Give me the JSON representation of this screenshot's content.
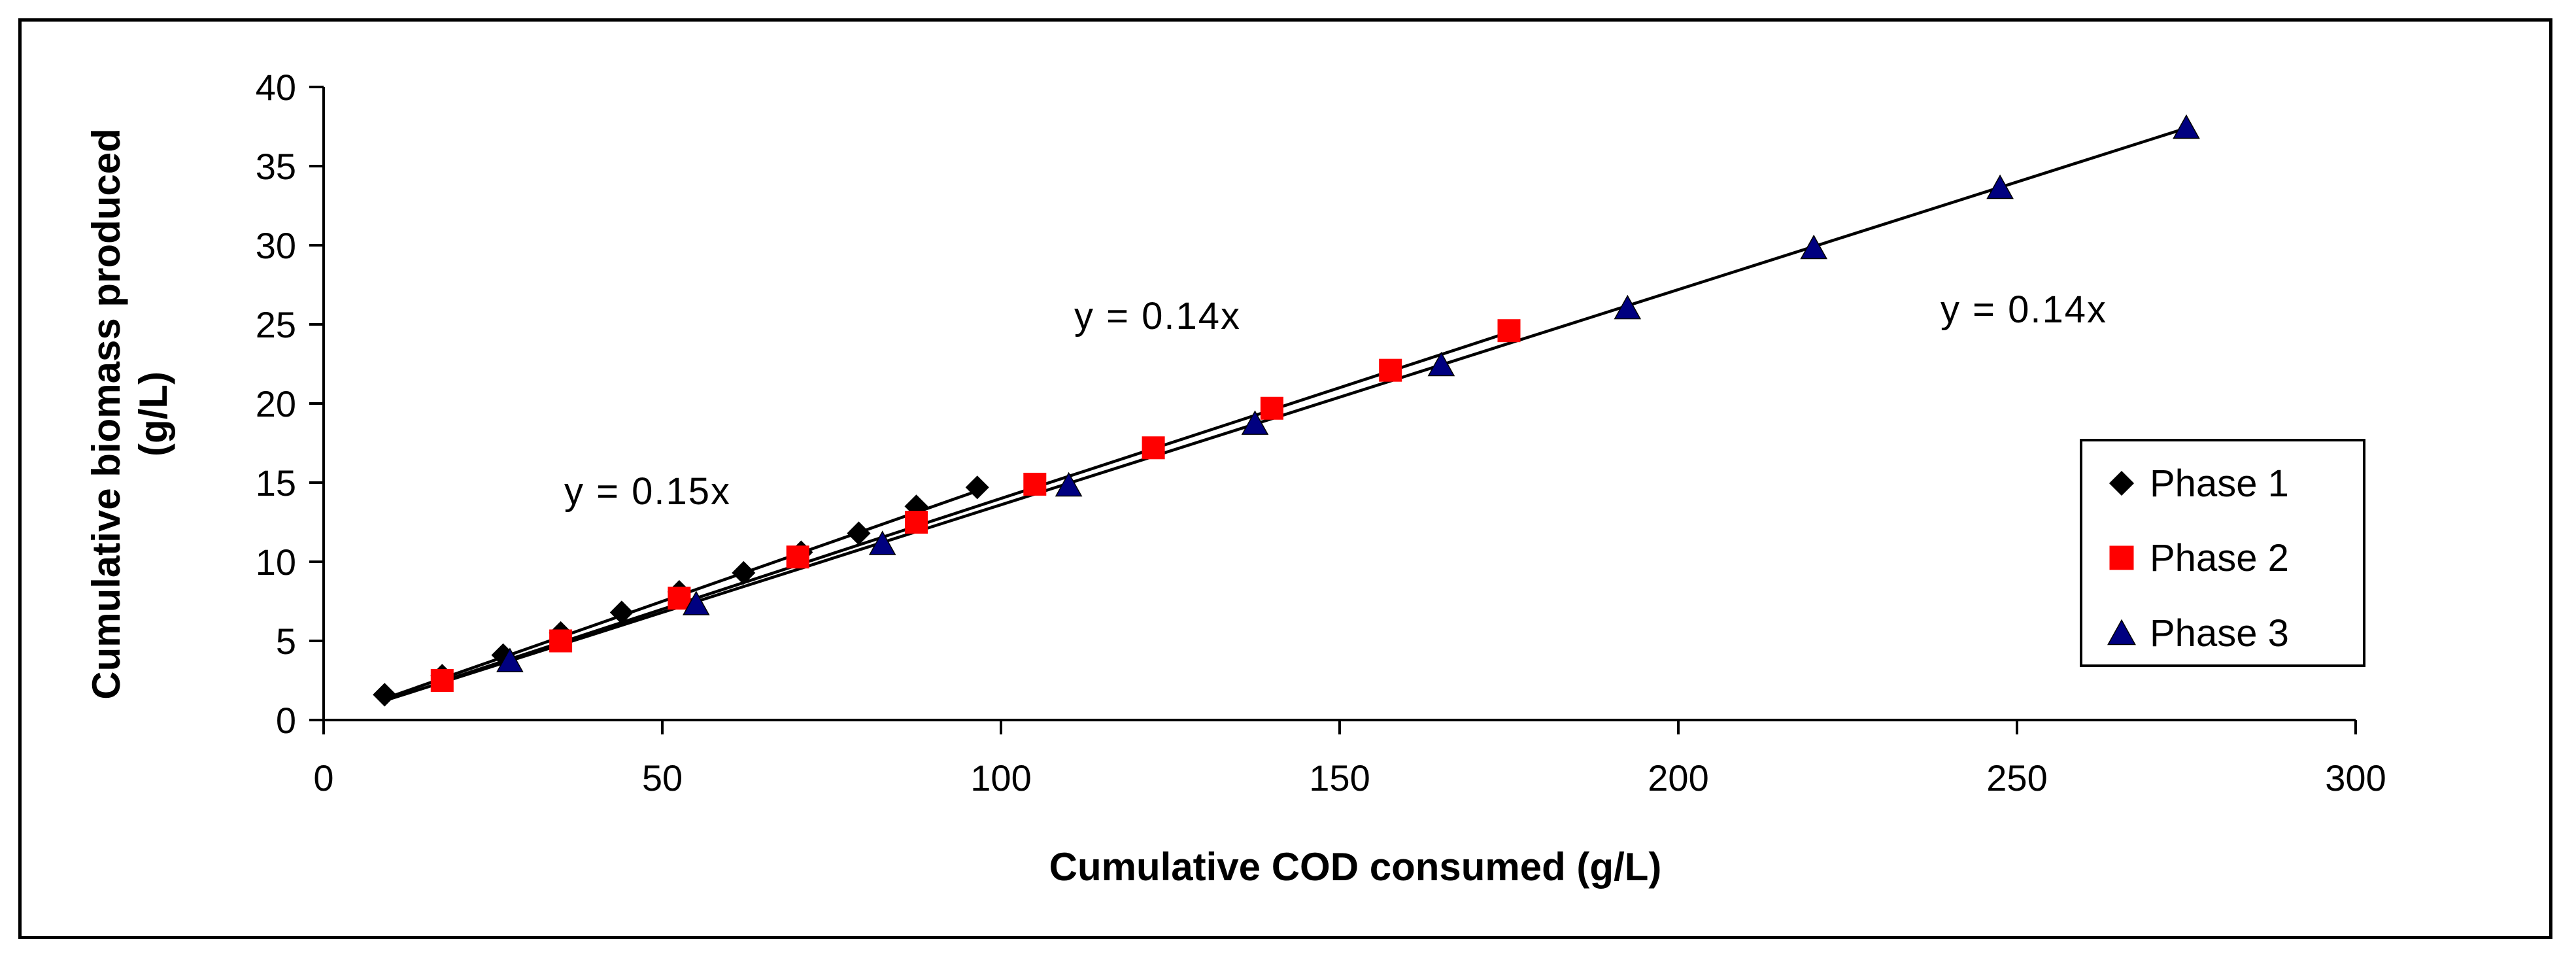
{
  "chart_data": {
    "type": "scatter",
    "title": "",
    "xlabel": "Cumulative COD consumed (g/L)",
    "ylabel_line1": "Cumulative biomass produced",
    "ylabel_line2": "(g/L)",
    "xlim": [
      0,
      300
    ],
    "ylim": [
      0,
      40
    ],
    "xticks": [
      0,
      50,
      100,
      150,
      200,
      250,
      300
    ],
    "yticks": [
      0,
      5,
      10,
      15,
      20,
      25,
      30,
      35,
      40
    ],
    "grid": false,
    "legend_position": "right",
    "series": [
      {
        "name": "Phase 1",
        "marker": "diamond",
        "color": "#000000",
        "x": [
          9,
          17.5,
          26.5,
          35,
          44,
          52.5,
          62,
          70.5,
          79,
          87.5,
          96.5
        ],
        "y": [
          1.6,
          2.8,
          4.1,
          5.5,
          6.8,
          8.1,
          9.3,
          10.6,
          11.8,
          13.5,
          14.7
        ],
        "trendline_slope": 0.15,
        "trendline_range": [
          9,
          96.5
        ],
        "equation": "y = 0.15x"
      },
      {
        "name": "Phase 2",
        "marker": "square",
        "color": "#ff0000",
        "x": [
          17.5,
          35,
          52.5,
          70,
          87.5,
          105,
          122.5,
          140,
          157.5,
          175
        ],
        "y": [
          2.5,
          5.0,
          7.7,
          10.3,
          12.5,
          14.9,
          17.2,
          19.7,
          22.1,
          24.6
        ],
        "trendline_slope": 0.14,
        "trendline_range": [
          17.5,
          175
        ],
        "equation": "y = 0.14x"
      },
      {
        "name": "Phase 3",
        "marker": "triangle",
        "color": "#000080",
        "x": [
          27.5,
          55,
          82.5,
          110,
          137.5,
          165,
          192.5,
          220,
          247.5,
          275
        ],
        "y": [
          3.7,
          7.3,
          11.1,
          14.8,
          18.7,
          22.4,
          26.0,
          29.8,
          33.6,
          37.4
        ],
        "trendline_slope": 0.136,
        "trendline_range": [
          9,
          275
        ],
        "equation": "y = 0.14x"
      }
    ]
  }
}
